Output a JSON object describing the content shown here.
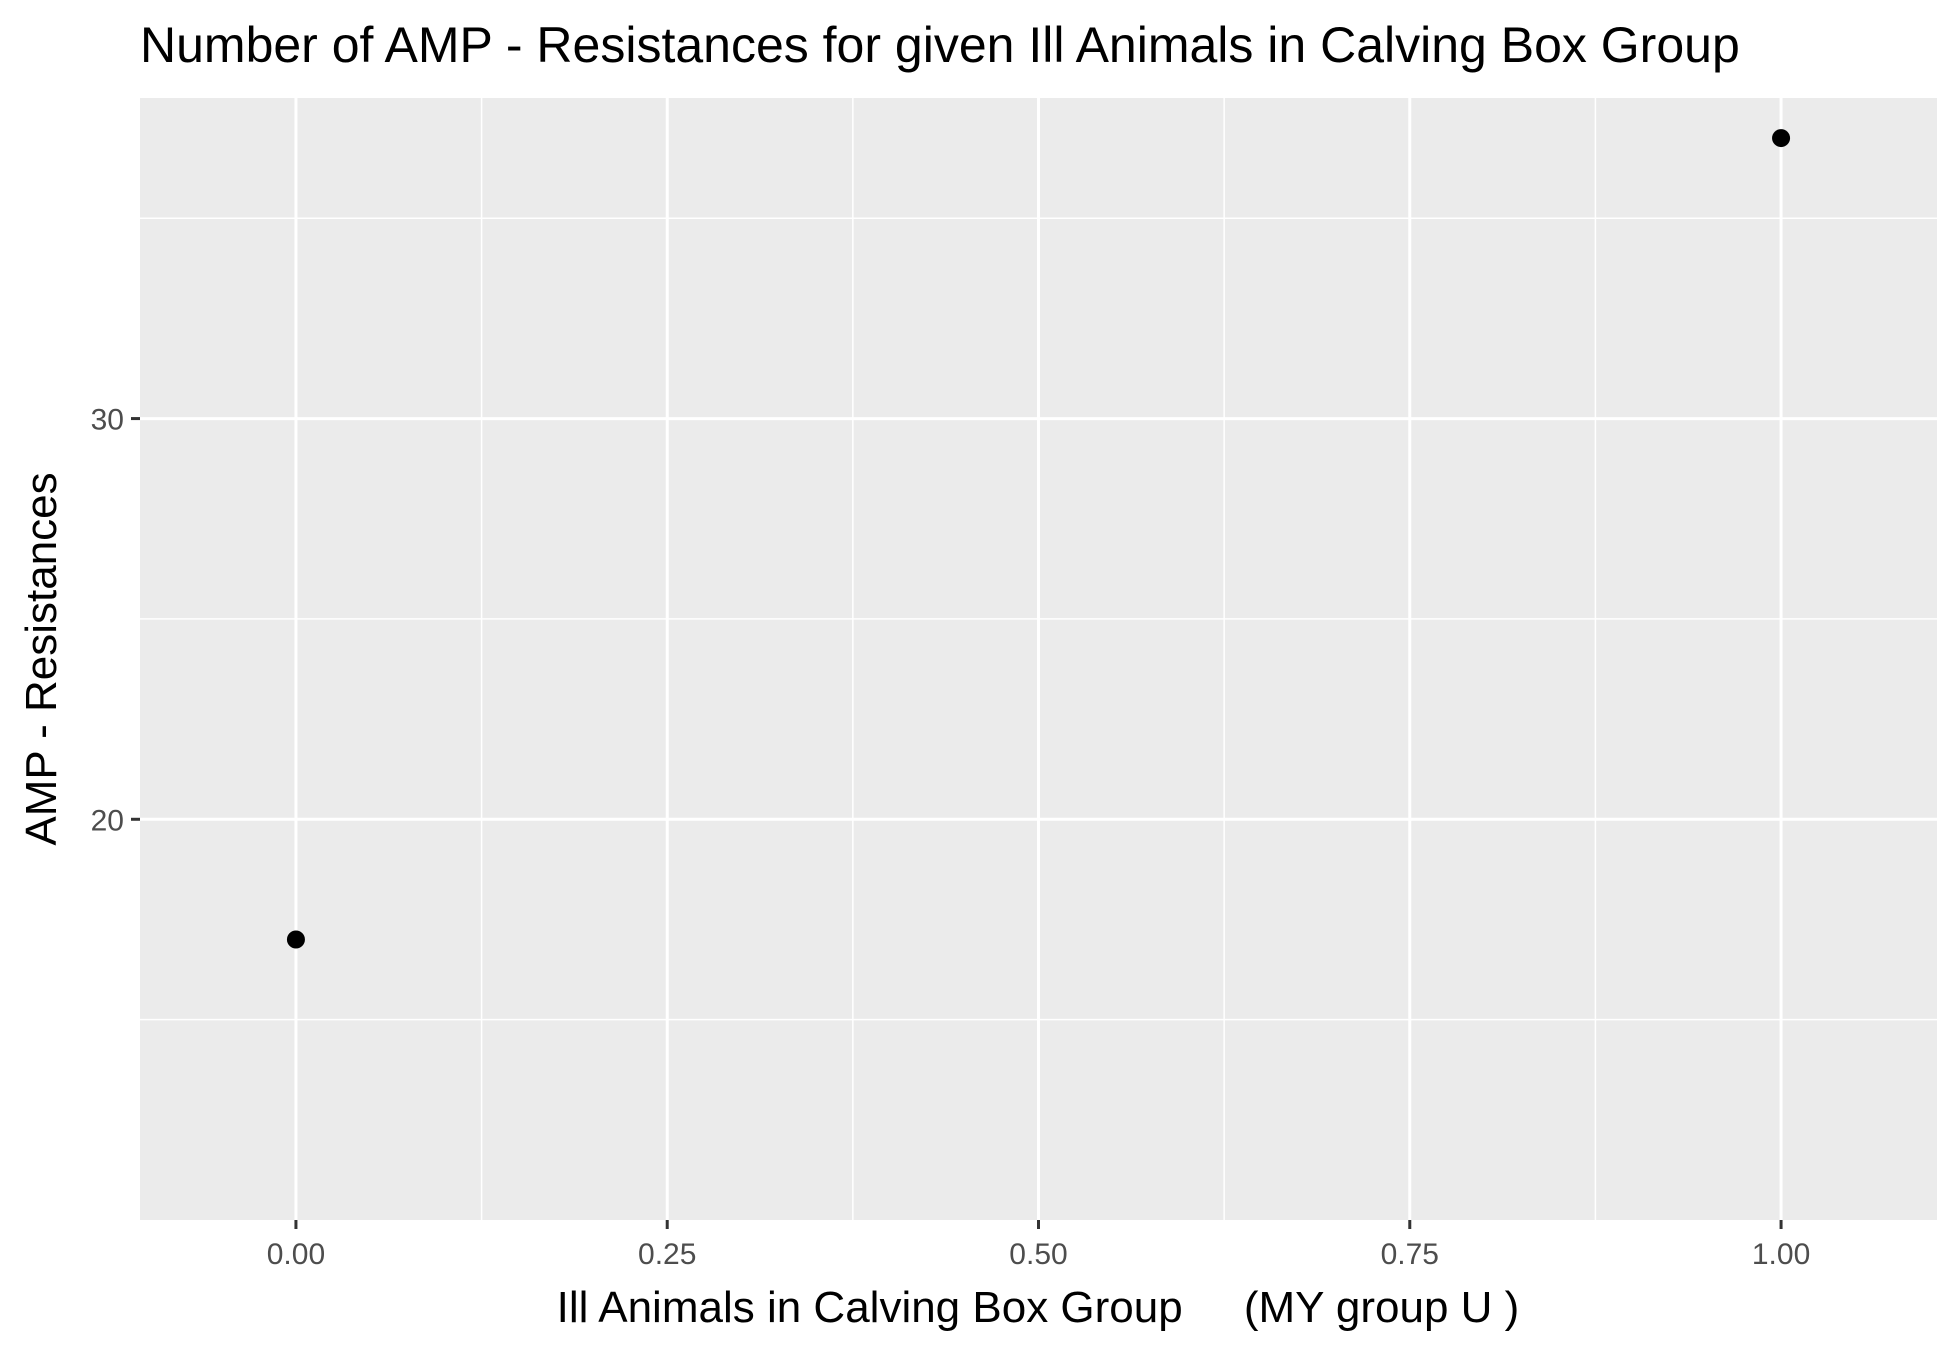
{
  "chart_data": {
    "type": "scatter",
    "title": "Number of AMP - Resistances for given Ill Animals in Calving Box Group",
    "xlabel": "Ill Animals in Calving Box Group     (MY group U )",
    "ylabel": "AMP - Resistances",
    "x_ticks": [
      "0.00",
      "0.25",
      "0.50",
      "0.75",
      "1.00"
    ],
    "y_ticks": [
      "20",
      "30"
    ],
    "xlim": [
      -0.105,
      1.105
    ],
    "ylim": [
      10,
      38
    ],
    "grid": true,
    "series": [
      {
        "points": [
          {
            "x": 0,
            "y": 17
          },
          {
            "x": 1,
            "y": 37
          }
        ]
      }
    ],
    "colors": {
      "panel_background": "#ebebeb",
      "grid_major": "#ffffff",
      "grid_minor": "#ffffff",
      "point": "#000000",
      "tick_text": "#4d4d4d",
      "tick_mark": "#333333"
    }
  }
}
